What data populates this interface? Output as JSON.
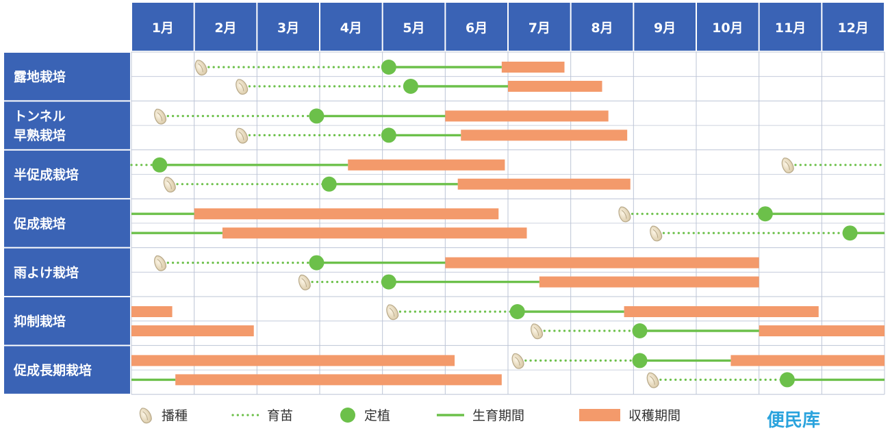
{
  "colors": {
    "header_bg": "#3a63b5",
    "header_border": "#ffffff",
    "grid_bg": "#ffffff",
    "grid_line": "#bcc4d6",
    "growth_line": "#6cc04a",
    "seedling_dots": "#6cc04a",
    "planting_dot": "#6cc04a",
    "harvest_bar": "#f39a6b",
    "seed": "#e8dcc2",
    "seed_outline": "#b7a888",
    "brand": "#2aa3dd"
  },
  "months": [
    "1月",
    "2月",
    "3月",
    "4月",
    "5月",
    "6月",
    "7月",
    "8月",
    "9月",
    "10月",
    "11月",
    "12月"
  ],
  "rows": [
    {
      "label_lines": [
        "露地栽培"
      ]
    },
    {
      "label_lines": [
        "トンネル",
        "早熟栽培"
      ]
    },
    {
      "label_lines": [
        "半促成栽培"
      ]
    },
    {
      "label_lines": [
        "促成栽培"
      ]
    },
    {
      "label_lines": [
        "雨よけ栽培"
      ]
    },
    {
      "label_lines": [
        "抑制栽培"
      ]
    },
    {
      "label_lines": [
        "促成長期栽培"
      ]
    }
  ],
  "chart_data": {
    "type": "gantt",
    "x_unit": "month",
    "x_range": [
      1,
      13
    ],
    "categories": [
      "露地栽培",
      "トンネル早熟栽培",
      "半促成栽培",
      "促成栽培",
      "雨よけ栽培",
      "抑制栽培",
      "促成長期栽培"
    ],
    "tracks": [
      {
        "row": 0,
        "sub": 0,
        "sow": 2.1,
        "nursery": [
          2.1,
          5.1
        ],
        "plant": 5.1,
        "growth": [
          5.1,
          6.9
        ],
        "harvest": [
          [
            6.9,
            7.9
          ]
        ]
      },
      {
        "row": 0,
        "sub": 1,
        "sow": 2.75,
        "nursery": [
          2.75,
          5.45
        ],
        "plant": 5.45,
        "growth": [
          5.45,
          7.0
        ],
        "harvest": [
          [
            7.0,
            8.5
          ]
        ]
      },
      {
        "row": 1,
        "sub": 0,
        "sow": 1.45,
        "nursery": [
          1.45,
          3.95
        ],
        "plant": 3.95,
        "growth": [
          3.95,
          6.0
        ],
        "harvest": [
          [
            6.0,
            8.6
          ]
        ]
      },
      {
        "row": 1,
        "sub": 1,
        "sow": 2.75,
        "nursery": [
          2.75,
          5.1
        ],
        "plant": 5.1,
        "growth": [
          5.1,
          6.25
        ],
        "harvest": [
          [
            6.25,
            8.9
          ]
        ]
      },
      {
        "row": 2,
        "sub": 0,
        "sow": null,
        "nursery": [
          1.0,
          1.45
        ],
        "plant": 1.45,
        "growth": [
          1.45,
          4.45
        ],
        "harvest": [
          [
            4.45,
            6.95
          ]
        ]
      },
      {
        "row": 2,
        "sub": 0,
        "sow": 11.45,
        "nursery": [
          11.45,
          13.0
        ],
        "plant": null,
        "growth": null,
        "harvest": []
      },
      {
        "row": 2,
        "sub": 1,
        "sow": 1.6,
        "nursery": [
          1.6,
          4.15
        ],
        "plant": 4.15,
        "growth": [
          4.15,
          6.2
        ],
        "harvest": [
          [
            6.2,
            8.95
          ]
        ]
      },
      {
        "row": 3,
        "sub": 0,
        "sow": null,
        "nursery": null,
        "plant": null,
        "growth": [
          1.0,
          2.0
        ],
        "harvest": [
          [
            2.0,
            6.85
          ]
        ]
      },
      {
        "row": 3,
        "sub": 0,
        "sow": 8.85,
        "nursery": [
          8.85,
          11.1
        ],
        "plant": 11.1,
        "growth": [
          11.1,
          13.0
        ],
        "harvest": []
      },
      {
        "row": 3,
        "sub": 1,
        "sow": null,
        "nursery": null,
        "plant": null,
        "growth": [
          1.0,
          2.45
        ],
        "harvest": [
          [
            2.45,
            7.3
          ]
        ]
      },
      {
        "row": 3,
        "sub": 1,
        "sow": 9.35,
        "nursery": [
          9.35,
          12.45
        ],
        "plant": 12.45,
        "growth": [
          12.45,
          13.0
        ],
        "harvest": []
      },
      {
        "row": 4,
        "sub": 0,
        "sow": 1.45,
        "nursery": [
          1.45,
          3.95
        ],
        "plant": 3.95,
        "growth": [
          3.95,
          6.0
        ],
        "harvest": [
          [
            6.0,
            11.0
          ]
        ]
      },
      {
        "row": 4,
        "sub": 1,
        "sow": 3.75,
        "nursery": [
          3.75,
          5.1
        ],
        "plant": 5.1,
        "growth": [
          5.1,
          7.5
        ],
        "harvest": [
          [
            7.5,
            11.0
          ]
        ]
      },
      {
        "row": 5,
        "sub": 0,
        "sow": null,
        "nursery": null,
        "plant": null,
        "growth": null,
        "harvest": [
          [
            1.0,
            1.65
          ]
        ]
      },
      {
        "row": 5,
        "sub": 0,
        "sow": 5.15,
        "nursery": [
          5.15,
          7.15
        ],
        "plant": 7.15,
        "growth": [
          7.15,
          8.85
        ],
        "harvest": [
          [
            8.85,
            11.95
          ]
        ]
      },
      {
        "row": 5,
        "sub": 1,
        "sow": null,
        "nursery": null,
        "plant": null,
        "growth": null,
        "harvest": [
          [
            1.0,
            2.95
          ]
        ]
      },
      {
        "row": 5,
        "sub": 1,
        "sow": 7.45,
        "nursery": [
          7.45,
          9.1
        ],
        "plant": 9.1,
        "growth": [
          9.1,
          11.0
        ],
        "harvest": [
          [
            11.0,
            13.0
          ]
        ]
      },
      {
        "row": 6,
        "sub": 0,
        "sow": null,
        "nursery": null,
        "plant": null,
        "growth": null,
        "harvest": [
          [
            1.0,
            6.15
          ]
        ]
      },
      {
        "row": 6,
        "sub": 0,
        "sow": 7.15,
        "nursery": [
          7.15,
          9.1
        ],
        "plant": 9.1,
        "growth": [
          9.1,
          10.55
        ],
        "harvest": [
          [
            10.55,
            13.0
          ]
        ]
      },
      {
        "row": 6,
        "sub": 1,
        "sow": null,
        "nursery": null,
        "plant": null,
        "growth": [
          1.0,
          1.7
        ],
        "harvest": [
          [
            1.7,
            6.9
          ]
        ]
      },
      {
        "row": 6,
        "sub": 1,
        "sow": 9.3,
        "nursery": [
          9.3,
          11.45
        ],
        "plant": 11.45,
        "growth": [
          11.45,
          13.0
        ],
        "harvest": []
      }
    ]
  },
  "legend": {
    "sow": "播種",
    "nursery": "育苗",
    "plant": "定植",
    "growth": "生育期間",
    "harvest": "収穫期間"
  },
  "brand": "便民库"
}
